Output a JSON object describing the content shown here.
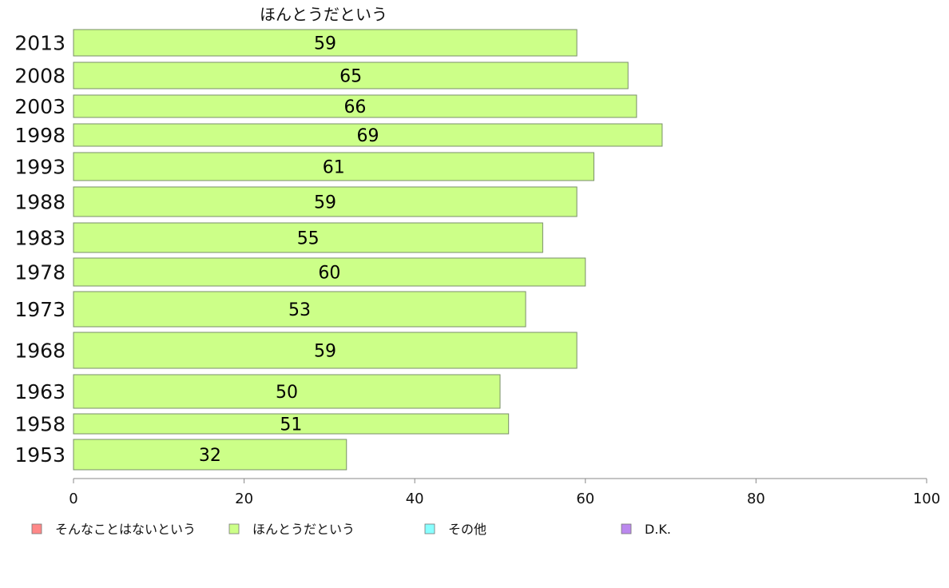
{
  "chart_data": {
    "type": "bar",
    "orientation": "horizontal",
    "title": "ほんとうだという",
    "categories": [
      "2013",
      "2008",
      "2003",
      "1998",
      "1993",
      "1988",
      "1983",
      "1978",
      "1973",
      "1968",
      "1963",
      "1958",
      "1953"
    ],
    "values": [
      59,
      65,
      66,
      69,
      61,
      59,
      55,
      60,
      53,
      59,
      50,
      51,
      32
    ],
    "xlim": [
      0,
      100
    ],
    "xticks": [
      0,
      20,
      40,
      60,
      80,
      100
    ],
    "grid": false,
    "bar_color": "#ccff88",
    "bar_edge_color": "#7a8f6a",
    "legend_position": "bottom",
    "legend": [
      {
        "label": "そんなことはないという",
        "color": "#ff8888"
      },
      {
        "label": "ほんとうだという",
        "color": "#ccff88"
      },
      {
        "label": "その他",
        "color": "#88ffff"
      },
      {
        "label": "D.K.",
        "color": "#bb88ee"
      }
    ]
  }
}
